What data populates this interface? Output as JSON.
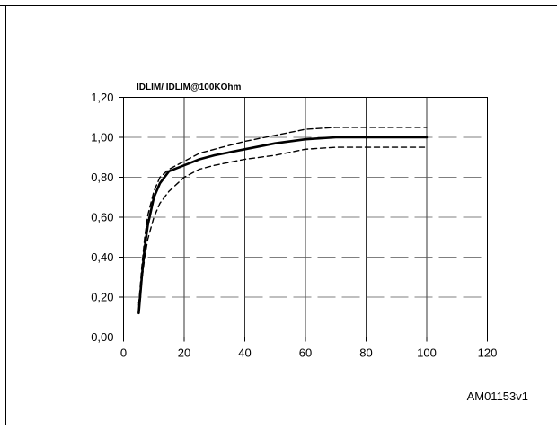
{
  "figure_id": "AM01153v1",
  "chart_data": {
    "type": "line",
    "title": "IDLIM/ IDLIM@100KOhm",
    "xlabel": "",
    "ylabel": "",
    "xlim": [
      0,
      120
    ],
    "ylim": [
      0,
      1.2
    ],
    "x_ticks": [
      0,
      20,
      40,
      60,
      80,
      100,
      120
    ],
    "x_tick_labels": [
      "0",
      "20",
      "40",
      "60",
      "80",
      "100",
      "120"
    ],
    "y_ticks": [
      0,
      0.2,
      0.4,
      0.6,
      0.8,
      1.0,
      1.2
    ],
    "y_tick_labels": [
      "0,00",
      "0,20",
      "0,40",
      "0,60",
      "0,80",
      "1,00",
      "1,20"
    ],
    "grid": {
      "vertical": "solid",
      "horizontal": "dashed"
    },
    "series": [
      {
        "style": "solid",
        "x": [
          5,
          6,
          7,
          8,
          10,
          12,
          15,
          20,
          25,
          30,
          40,
          50,
          60,
          70,
          80,
          90,
          100
        ],
        "y": [
          0.12,
          0.3,
          0.45,
          0.56,
          0.7,
          0.77,
          0.83,
          0.86,
          0.89,
          0.91,
          0.94,
          0.97,
          0.99,
          1.0,
          1.0,
          1.0,
          1.0
        ]
      },
      {
        "style": "dashed",
        "x": [
          5,
          6,
          7,
          8,
          10,
          12,
          15,
          20,
          25,
          30,
          40,
          50,
          60,
          70,
          80,
          90,
          100
        ],
        "y": [
          0.16,
          0.35,
          0.5,
          0.61,
          0.73,
          0.8,
          0.84,
          0.88,
          0.92,
          0.94,
          0.98,
          1.01,
          1.04,
          1.05,
          1.05,
          1.05,
          1.05
        ]
      },
      {
        "style": "dashed",
        "x": [
          5,
          6,
          7,
          8,
          10,
          12,
          15,
          20,
          25,
          30,
          40,
          50,
          60,
          70,
          80,
          90,
          100
        ],
        "y": [
          0.17,
          0.28,
          0.4,
          0.49,
          0.6,
          0.67,
          0.73,
          0.8,
          0.84,
          0.86,
          0.89,
          0.91,
          0.94,
          0.95,
          0.95,
          0.95,
          0.95
        ]
      }
    ]
  }
}
